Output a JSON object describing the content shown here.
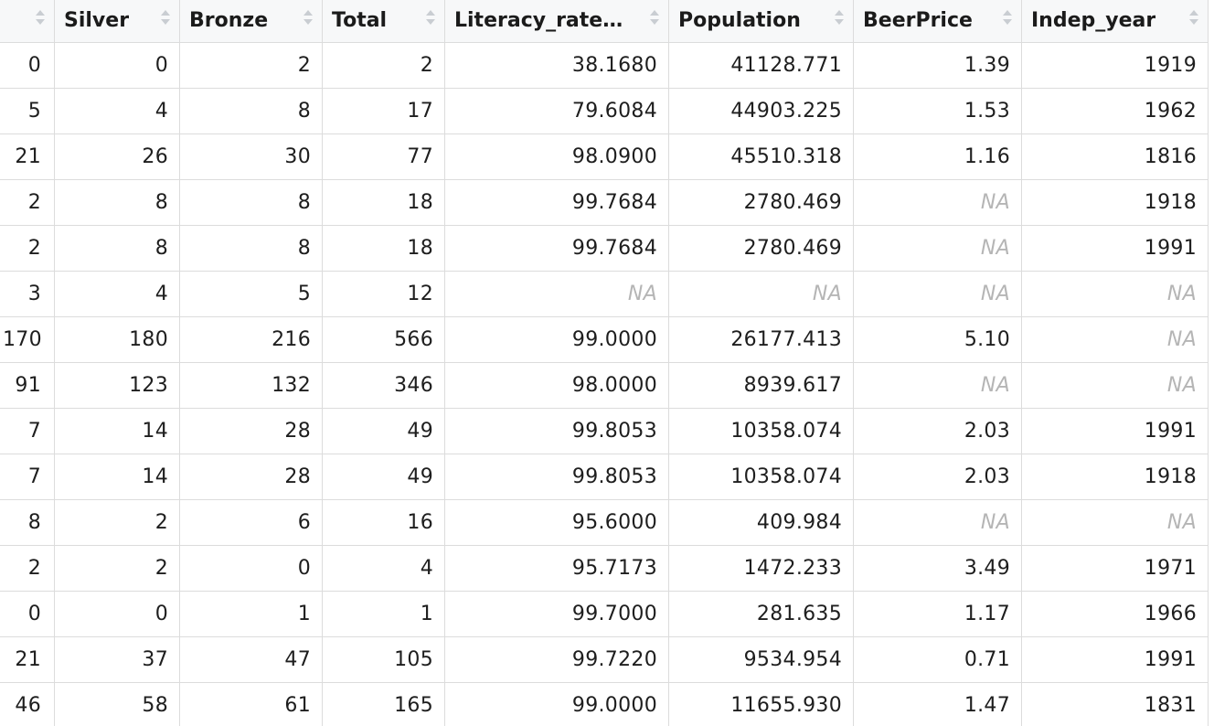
{
  "table": {
    "columns": [
      {
        "label": "",
        "name": "col-index"
      },
      {
        "label": "Silver",
        "name": "col-silver"
      },
      {
        "label": "Bronze",
        "name": "col-bronze"
      },
      {
        "label": "Total",
        "name": "col-total"
      },
      {
        "label": "Literacy_rate…",
        "name": "col-literacy-rate"
      },
      {
        "label": "Population",
        "name": "col-population"
      },
      {
        "label": "BeerPrice",
        "name": "col-beerprice"
      },
      {
        "label": "Indep_year",
        "name": "col-indep-year"
      }
    ],
    "na_label": "NA",
    "rows": [
      [
        "0",
        "0",
        "2",
        "2",
        "38.1680",
        "41128.771",
        "1.39",
        "1919"
      ],
      [
        "5",
        "4",
        "8",
        "17",
        "79.6084",
        "44903.225",
        "1.53",
        "1962"
      ],
      [
        "21",
        "26",
        "30",
        "77",
        "98.0900",
        "45510.318",
        "1.16",
        "1816"
      ],
      [
        "2",
        "8",
        "8",
        "18",
        "99.7684",
        "2780.469",
        "NA",
        "1918"
      ],
      [
        "2",
        "8",
        "8",
        "18",
        "99.7684",
        "2780.469",
        "NA",
        "1991"
      ],
      [
        "3",
        "4",
        "5",
        "12",
        "NA",
        "NA",
        "NA",
        "NA"
      ],
      [
        "170",
        "180",
        "216",
        "566",
        "99.0000",
        "26177.413",
        "5.10",
        "NA"
      ],
      [
        "91",
        "123",
        "132",
        "346",
        "98.0000",
        "8939.617",
        "NA",
        "NA"
      ],
      [
        "7",
        "14",
        "28",
        "49",
        "99.8053",
        "10358.074",
        "2.03",
        "1991"
      ],
      [
        "7",
        "14",
        "28",
        "49",
        "99.8053",
        "10358.074",
        "2.03",
        "1918"
      ],
      [
        "8",
        "2",
        "6",
        "16",
        "95.6000",
        "409.984",
        "NA",
        "NA"
      ],
      [
        "2",
        "2",
        "0",
        "4",
        "95.7173",
        "1472.233",
        "3.49",
        "1971"
      ],
      [
        "0",
        "0",
        "1",
        "1",
        "99.7000",
        "281.635",
        "1.17",
        "1966"
      ],
      [
        "21",
        "37",
        "47",
        "105",
        "99.7220",
        "9534.954",
        "0.71",
        "1991"
      ],
      [
        "46",
        "58",
        "61",
        "165",
        "99.0000",
        "11655.930",
        "1.47",
        "1831"
      ]
    ]
  },
  "colors": {
    "header_bg": "#f7f8f9",
    "grid_line": "#dcdcdc",
    "na_text": "#b5b5b5",
    "sort_icon": "#c9cdd2"
  }
}
